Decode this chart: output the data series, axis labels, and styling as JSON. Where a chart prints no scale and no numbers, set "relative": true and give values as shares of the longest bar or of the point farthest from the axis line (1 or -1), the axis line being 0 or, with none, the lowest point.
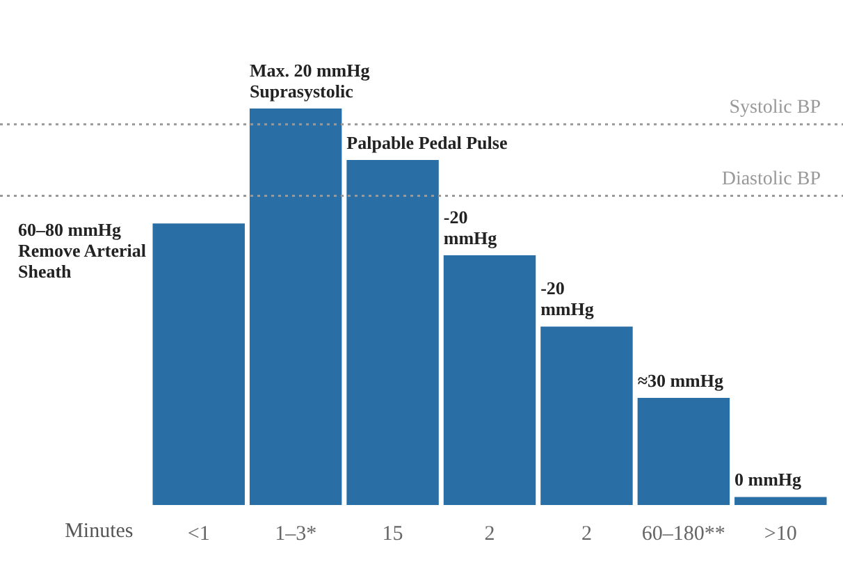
{
  "chart_data": {
    "type": "bar",
    "relative": true,
    "xlabel": "Minutes",
    "categories": [
      "<1",
      "1–3*",
      "15",
      "2",
      "2",
      "60–180**",
      ">10"
    ],
    "values": [
      0.71,
      1,
      0.87,
      0.63,
      0.45,
      0.27,
      0.02
    ],
    "color": "#2a6ea6",
    "annotations": [
      "60–80 mmHg\nRemove Arterial\nSheath",
      {
        "text": "Max. 20 mmHg\nSuprasystolic",
        "x": "1–3*",
        "y": 1
      },
      {
        "text": "Palpable Pedal Pulse",
        "x": "15",
        "y": 0.87
      },
      {
        "text": "-20\nmmHg",
        "x": "2",
        "y": 0.63
      },
      "-20\nmmHg",
      {
        "text": "≈30 mmHg",
        "x": "60–180**",
        "y": 0.27
      },
      {
        "text": "0 mmHg",
        "x": ">10",
        "y": 0.02
      }
    ],
    "ref_lines": [
      {
        "axis": "y",
        "value": 0.96,
        "label": "Systolic BP",
        "color": "#999999",
        "line_style": "dotted"
      },
      {
        "axis": "y",
        "value": 0.78,
        "label": "Diastolic BP",
        "color": "#999999",
        "line_style": "dotted"
      }
    ],
    "grid": false,
    "legend": false
  }
}
